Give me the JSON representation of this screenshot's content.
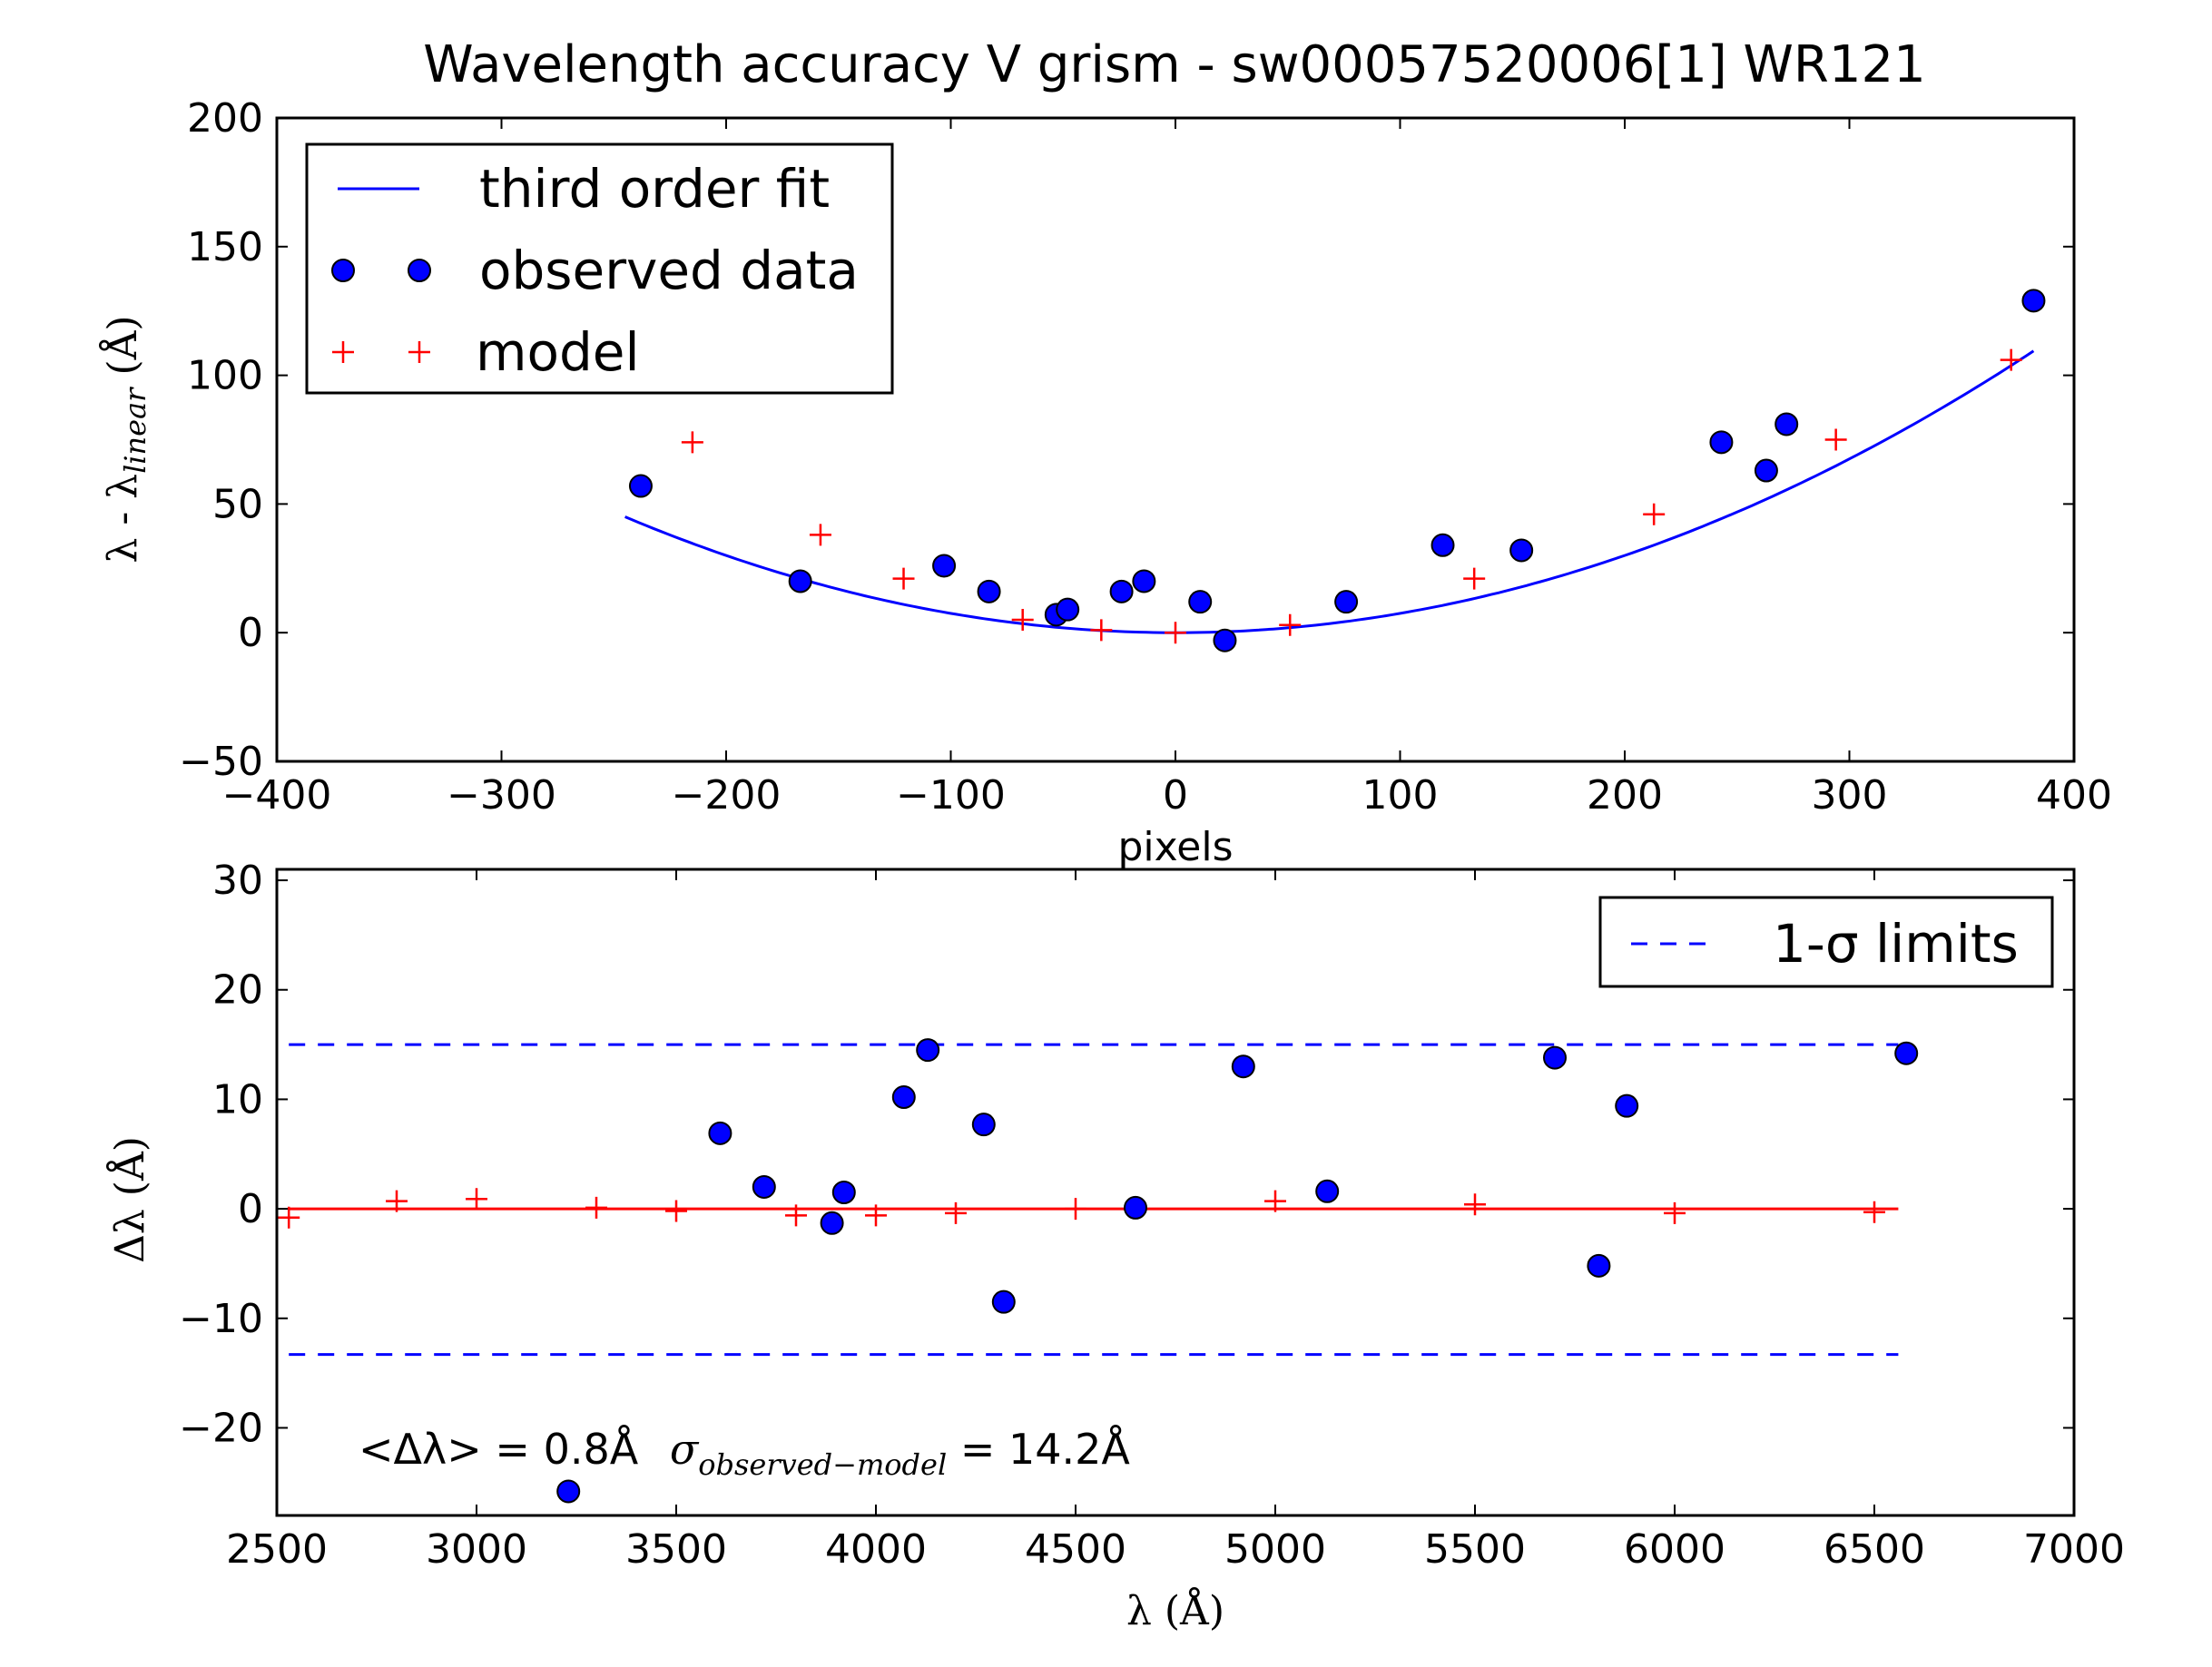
{
  "chart_data": [
    {
      "type": "scatter",
      "title": "Wavelength accuracy V grism - sw00057520006[1] WR121",
      "xlabel": "pixels",
      "ylabel": "λ - λlinear (Å)",
      "xlim": [
        -400,
        400
      ],
      "ylim": [
        -50,
        200
      ],
      "xticks": [
        "−400",
        "−300",
        "−200",
        "−100",
        "0",
        "100",
        "200",
        "300",
        "400"
      ],
      "yticks": [
        "−50",
        "0",
        "50",
        "100",
        "150",
        "200"
      ],
      "grid": false,
      "legend_position": "upper-left",
      "legend": [
        "third order fit",
        "observed data",
        "model"
      ],
      "series": [
        {
          "name": "third order fit",
          "style": "line",
          "color": "#0000ff",
          "coefficients": [
            0,
            0,
            0.00075
          ],
          "x_range": [
            -245,
            382
          ]
        },
        {
          "name": "observed data",
          "style": "circle",
          "color": "#0000ff",
          "x": [
            -238,
            -167,
            -103,
            -83,
            -53,
            -48,
            -24,
            -14,
            11,
            22,
            76,
            119,
            154,
            243,
            263,
            272,
            382
          ],
          "y": [
            57,
            20,
            26,
            16,
            7,
            9,
            16,
            20,
            12,
            -3,
            12,
            34,
            32,
            74,
            63,
            81,
            129
          ]
        },
        {
          "name": "model",
          "style": "plus",
          "color": "#ff0000",
          "x": [
            -215,
            -158,
            -121,
            -68,
            -33,
            0,
            51,
            133,
            213,
            294,
            372
          ],
          "y": [
            74,
            38,
            21,
            5,
            1,
            0,
            3,
            21,
            46,
            75,
            106
          ]
        }
      ]
    },
    {
      "type": "scatter",
      "xlabel": "λ (Å)",
      "ylabel": "Δλ (Å)",
      "xlim": [
        2500,
        7000
      ],
      "ylim": [
        -28,
        31
      ],
      "xticks": [
        "2500",
        "3000",
        "3500",
        "4000",
        "4500",
        "5000",
        "5500",
        "6000",
        "6500",
        "7000"
      ],
      "yticks": [
        "−20",
        "−10",
        "0",
        "10",
        "20",
        "30"
      ],
      "grid": false,
      "legend_position": "upper-right",
      "legend": [
        "1-σ limits"
      ],
      "annotation": {
        "mean_part": "<Δλ> = 0.8Å",
        "sigma_symbol": "σ",
        "sigma_subscript": "observed−model",
        "sigma_value": " = 14.2Å"
      },
      "series": [
        {
          "name": "1-σ limits",
          "style": "dashed",
          "color": "#0000ff",
          "x_range": [
            2530,
            6560
          ],
          "levels": [
            15,
            -13.3
          ]
        },
        {
          "style": "line",
          "color": "#ff0000",
          "x_range": [
            2530,
            6560
          ],
          "levels": [
            0
          ]
        },
        {
          "style": "circle",
          "color": "#0000ff",
          "x": [
            3230,
            3610,
            3720,
            3890,
            3920,
            4070,
            4130,
            4270,
            4320,
            4650,
            4920,
            5130,
            5700,
            5810,
            5880,
            6580
          ],
          "y": [
            -25.8,
            6.9,
            2.0,
            -1.3,
            1.5,
            10.2,
            14.5,
            7.7,
            -8.5,
            0.1,
            13.0,
            1.6,
            13.8,
            -5.2,
            9.4,
            14.2
          ]
        },
        {
          "style": "plus",
          "color": "#ff0000",
          "x": [
            2530,
            2800,
            3000,
            3300,
            3500,
            3800,
            4000,
            4200,
            4500,
            5000,
            5500,
            6000,
            6500
          ],
          "y": [
            -0.8,
            0.7,
            0.9,
            0.1,
            -0.2,
            -0.6,
            -0.6,
            -0.4,
            0.0,
            0.7,
            0.4,
            -0.4,
            -0.3
          ]
        }
      ]
    }
  ]
}
